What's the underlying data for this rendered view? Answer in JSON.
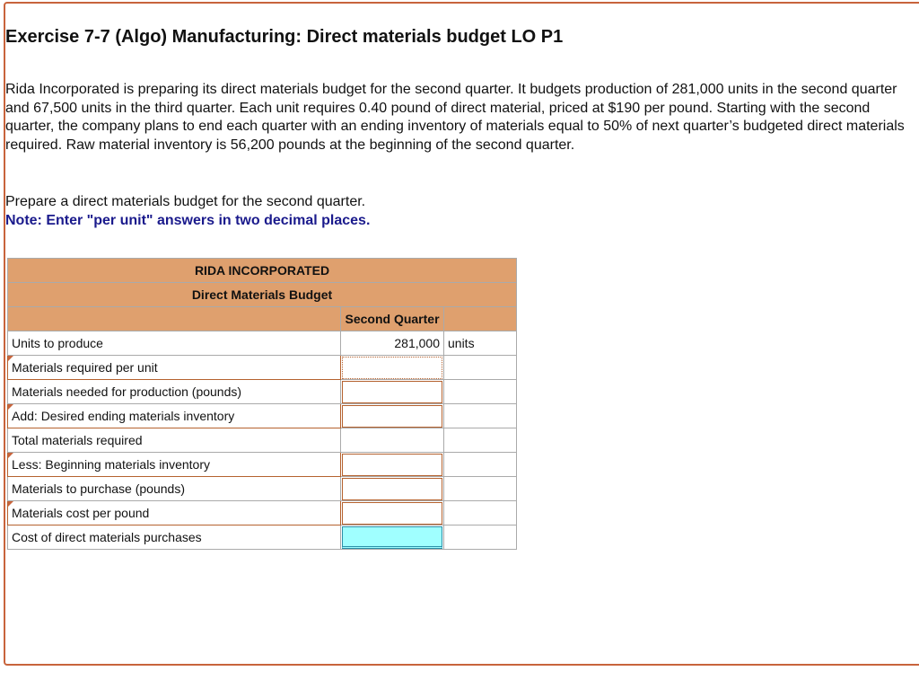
{
  "header": {
    "title": "Exercise 7-7 (Algo) Manufacturing: Direct materials budget LO P1"
  },
  "problem": {
    "text": "Rida Incorporated is preparing its direct materials budget for the second quarter. It budgets production of 281,000 units in the second quarter and 67,500 units in the third quarter. Each unit requires 0.40 pound of direct material, priced at $190 per pound. Starting with the second quarter, the company plans to end each quarter with an ending inventory of materials equal to 50% of next quarter’s budgeted direct materials required. Raw material inventory is 56,200 pounds at the beginning of the second quarter.",
    "prompt": "Prepare a direct materials budget for the second quarter.",
    "note": "Note: Enter \"per unit\" answers in two decimal places."
  },
  "table": {
    "company": "RIDA INCORPORATED",
    "title": "Direct Materials Budget",
    "column": "Second Quarter",
    "rows": [
      {
        "label": "Units to produce",
        "value": "281,000",
        "unit": "units"
      },
      {
        "label": "Materials required per unit"
      },
      {
        "label": "Materials needed for production (pounds)"
      },
      {
        "label": "Add: Desired ending materials inventory"
      },
      {
        "label": "Total materials required"
      },
      {
        "label": "Less: Beginning materials inventory"
      },
      {
        "label": "Materials to purchase (pounds)"
      },
      {
        "label": "Materials cost per pound"
      },
      {
        "label": "Cost of direct materials purchases"
      }
    ]
  }
}
